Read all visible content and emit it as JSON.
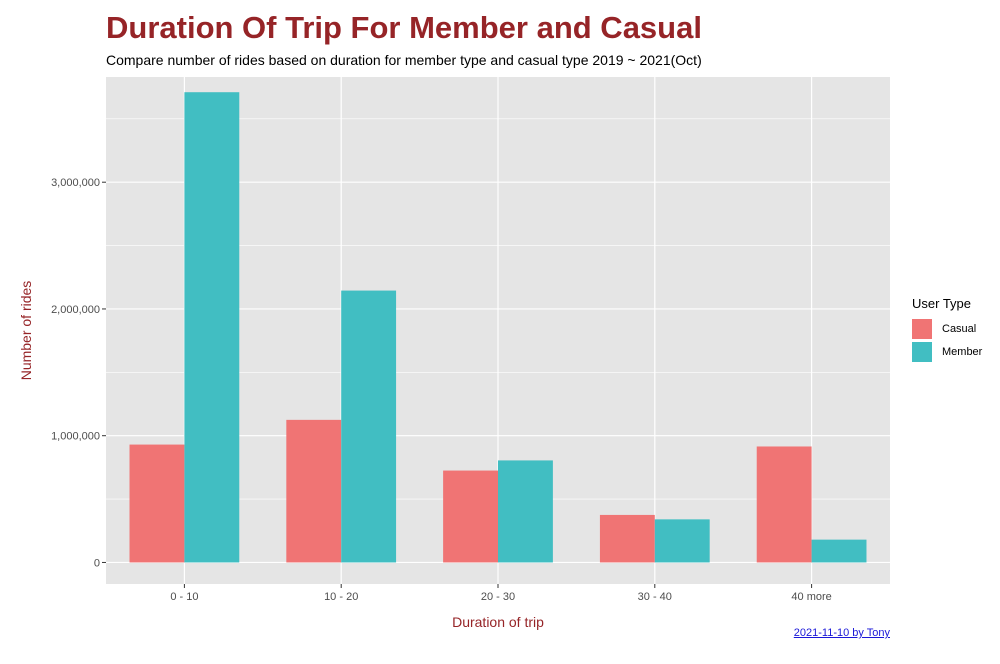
{
  "chart_data": {
    "type": "bar",
    "title": "Duration Of Trip For Member and Casual",
    "subtitle": "Compare number of rides based on duration for member type and casual type 2019 ~ 2021(Oct)",
    "xlabel": "Duration of trip",
    "ylabel": "Number of rides",
    "caption": "2021-11-10 by Tony",
    "categories": [
      "0 - 10",
      "10 - 20",
      "20 - 30",
      "30 - 40",
      "40 more"
    ],
    "series": [
      {
        "name": "Casual",
        "color": "#F07474",
        "values": [
          930000,
          1125000,
          725000,
          375000,
          915000
        ]
      },
      {
        "name": "Member",
        "color": "#41BEC2",
        "values": [
          3710000,
          2145000,
          805000,
          340000,
          180000
        ]
      }
    ],
    "ylim": [
      -170000,
      3830000
    ],
    "yticks": [
      0,
      1000000,
      2000000,
      3000000
    ],
    "ytick_labels": [
      "0",
      "1,000,000",
      "2,000,000",
      "3,000,000"
    ],
    "legend": {
      "title": "User Type",
      "position": "right"
    },
    "grid": true,
    "colors": {
      "panel_background": "#E5E5E5",
      "grid": "#FFFFFF",
      "title": "#962427",
      "axis_label": "#962427",
      "caption": "#1A17D8"
    }
  }
}
